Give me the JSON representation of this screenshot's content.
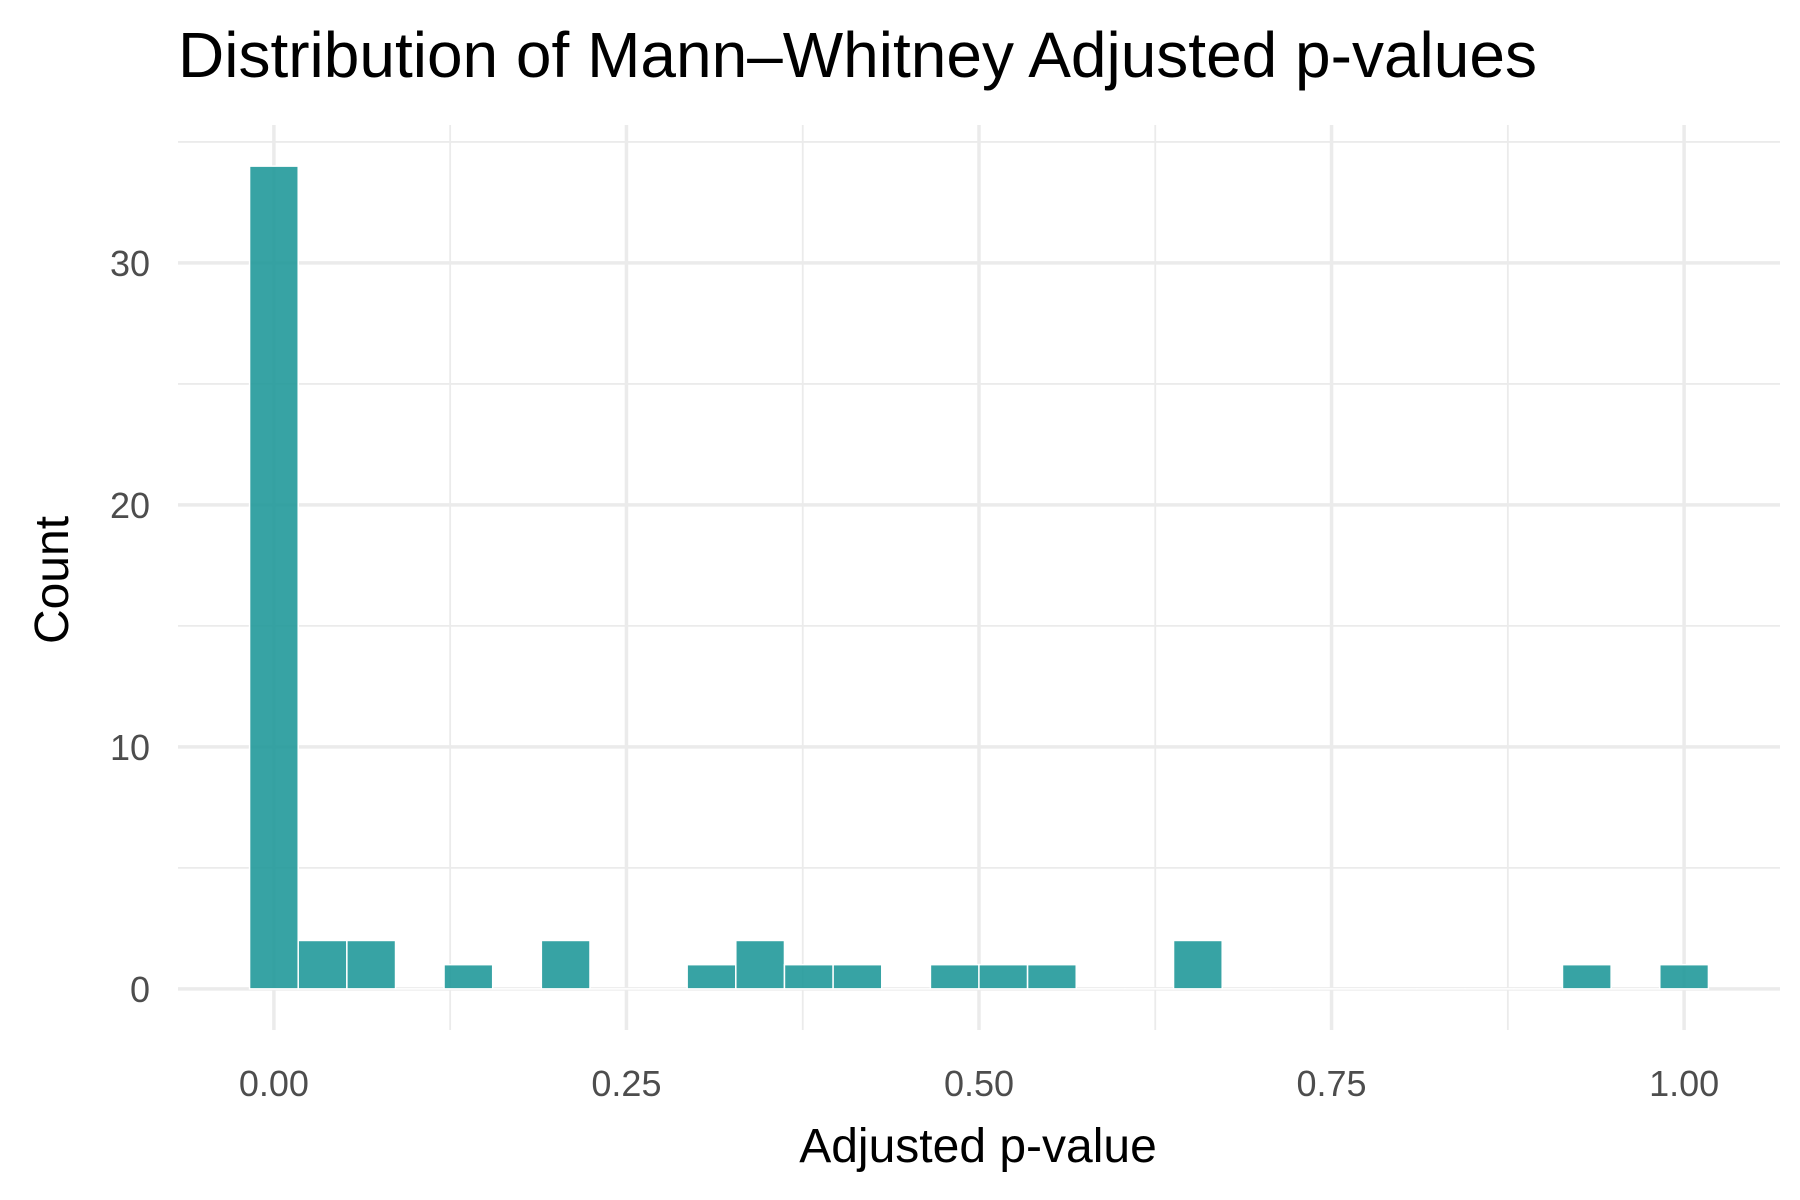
{
  "chart_data": {
    "type": "bar",
    "title": "Distribution of Mann–Whitney Adjusted p-values",
    "xlabel": "Adjusted p-value",
    "ylabel": "Count",
    "bin_width": 0.0345,
    "bin_centers": [
      0.0,
      0.0345,
      0.069,
      0.1034,
      0.1379,
      0.1724,
      0.2069,
      0.2414,
      0.2759,
      0.3103,
      0.3448,
      0.3793,
      0.4138,
      0.4483,
      0.4828,
      0.5172,
      0.5517,
      0.5862,
      0.6207,
      0.6552,
      0.6897,
      0.7241,
      0.7586,
      0.7931,
      0.8276,
      0.8621,
      0.8966,
      0.931,
      0.9655,
      1.0
    ],
    "values": [
      34,
      2,
      2,
      0,
      1,
      0,
      2,
      0,
      0,
      1,
      2,
      1,
      1,
      0,
      1,
      1,
      1,
      0,
      0,
      2,
      0,
      0,
      0,
      0,
      0,
      0,
      0,
      1,
      0,
      1
    ],
    "xlim": [
      -0.068,
      1.068
    ],
    "ylim": [
      -1.7,
      35.7
    ],
    "x_ticks": [
      0.0,
      0.25,
      0.5,
      0.75,
      1.0
    ],
    "x_tick_labels": [
      "0.00",
      "0.25",
      "0.50",
      "0.75",
      "1.00"
    ],
    "y_ticks": [
      0,
      10,
      20,
      30
    ],
    "y_tick_labels": [
      "0",
      "10",
      "20",
      "30"
    ],
    "bar_color": "#21999a",
    "bar_opacity": 0.9,
    "grid": true,
    "legend": "none"
  }
}
